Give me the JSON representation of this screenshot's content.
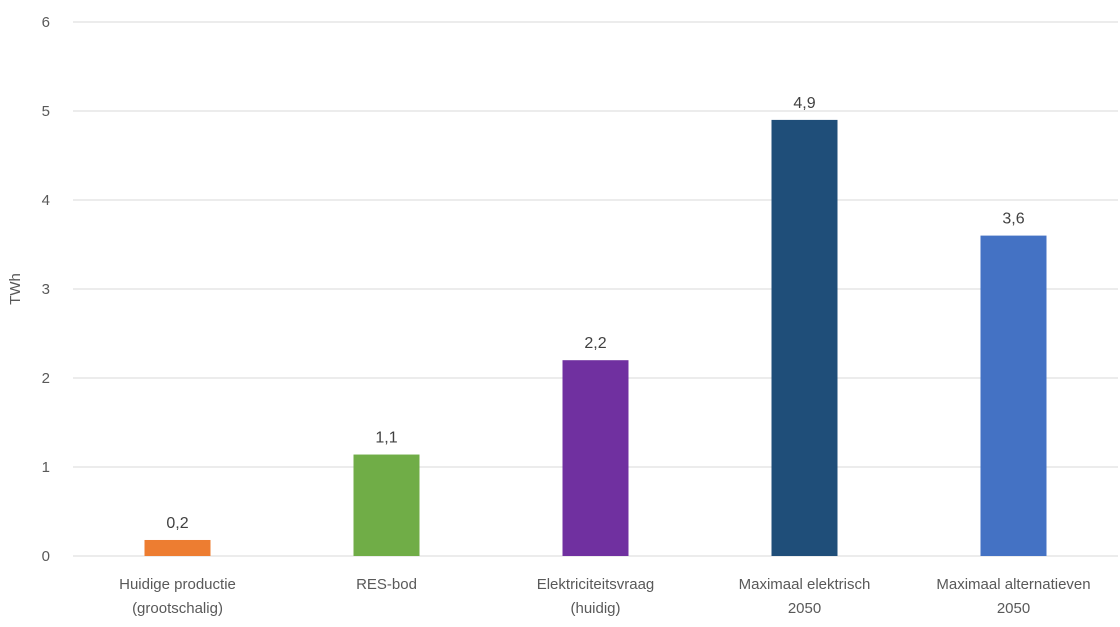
{
  "chart_data": {
    "type": "bar",
    "ylabel": "TWh",
    "ylim": [
      0,
      6
    ],
    "yticks": [
      "0",
      "1",
      "2",
      "3",
      "4",
      "5",
      "6"
    ],
    "grid": true,
    "categories": [
      [
        "Huidige productie",
        "(grootschalig)"
      ],
      [
        "RES-bod"
      ],
      [
        "Elektriciteitsvraag",
        "(huidig)"
      ],
      [
        "Maximaal elektrisch",
        "2050"
      ],
      [
        "Maximaal alternatieven",
        "2050"
      ]
    ],
    "values": [
      0.18,
      1.14,
      2.2,
      4.9,
      3.6
    ],
    "value_labels": [
      "0,2",
      "1,1",
      "2,2",
      "4,9",
      "3,6"
    ],
    "colors": [
      "#ED7D31",
      "#70AD47",
      "#7030A0",
      "#1F4E79",
      "#4472C4"
    ]
  }
}
